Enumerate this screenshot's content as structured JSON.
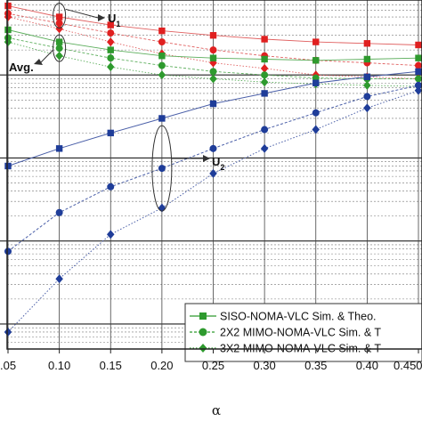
{
  "chart_data": {
    "type": "line",
    "xlabel": "α",
    "ylabel": "",
    "title": "",
    "x_ticks": [
      0.05,
      0.1,
      0.15,
      0.2,
      0.25,
      0.3,
      0.35,
      0.4,
      0.45
    ],
    "x_tick_labels": [
      ".05",
      "0.10",
      "0.15",
      "0.20",
      "0.25",
      "0.30",
      "0.35",
      "0.40",
      "0.450"
    ],
    "xlim": [
      0.05,
      0.45
    ],
    "ylim": [
      5e-05,
      0.8
    ],
    "y_scale": "log",
    "grid": true,
    "legend_position": "bottom-right",
    "legend": [
      {
        "label": "SISO-NOMA-VLC Sim. & Theo.",
        "marker": "square",
        "color": "#2e9a2e"
      },
      {
        "label": "2X2 MIMO-NOMA-VLC Sim. & T",
        "marker": "circle",
        "color": "#2e9a2e"
      },
      {
        "label": "3X2 MIMO-NOMA-VLC Sim. & T",
        "marker": "diamond",
        "color": "#2e9a2e"
      }
    ],
    "annotations": [
      {
        "text": "U",
        "sub": "1"
      },
      {
        "text": "Avg."
      },
      {
        "text": "U",
        "sub": "2"
      }
    ],
    "series": [
      {
        "group": "U1",
        "style": "siso",
        "marker": "square",
        "color": "#e02020",
        "x": [
          0.05,
          0.1,
          0.15,
          0.2,
          0.25,
          0.3,
          0.35,
          0.4,
          0.45
        ],
        "y": [
          0.68,
          0.5,
          0.4,
          0.34,
          0.3,
          0.27,
          0.25,
          0.24,
          0.23
        ]
      },
      {
        "group": "U1",
        "style": "mimo2",
        "marker": "circle",
        "color": "#e02020",
        "x": [
          0.05,
          0.1,
          0.15,
          0.2,
          0.25,
          0.3,
          0.35,
          0.4,
          0.45
        ],
        "y": [
          0.55,
          0.42,
          0.32,
          0.25,
          0.2,
          0.17,
          0.15,
          0.14,
          0.13
        ]
      },
      {
        "group": "U1",
        "style": "mimo3",
        "marker": "diamond",
        "color": "#e02020",
        "x": [
          0.05,
          0.1,
          0.15,
          0.2,
          0.25,
          0.3,
          0.35,
          0.4,
          0.45
        ],
        "y": [
          0.5,
          0.36,
          0.25,
          0.18,
          0.14,
          0.12,
          0.1,
          0.095,
          0.09
        ]
      },
      {
        "group": "Avg",
        "style": "siso",
        "marker": "square",
        "color": "#2e9a2e",
        "x": [
          0.05,
          0.1,
          0.15,
          0.2,
          0.25,
          0.3,
          0.35,
          0.4,
          0.45
        ],
        "y": [
          0.35,
          0.25,
          0.2,
          0.17,
          0.16,
          0.155,
          0.15,
          0.155,
          0.16
        ]
      },
      {
        "group": "Avg",
        "style": "mimo2",
        "marker": "circle",
        "color": "#2e9a2e",
        "x": [
          0.05,
          0.1,
          0.15,
          0.2,
          0.25,
          0.3,
          0.35,
          0.4,
          0.45
        ],
        "y": [
          0.28,
          0.21,
          0.16,
          0.13,
          0.11,
          0.1,
          0.092,
          0.09,
          0.09
        ]
      },
      {
        "group": "Avg",
        "style": "mimo3",
        "marker": "diamond",
        "color": "#2e9a2e",
        "x": [
          0.05,
          0.1,
          0.15,
          0.2,
          0.25,
          0.3,
          0.35,
          0.4,
          0.45
        ],
        "y": [
          0.25,
          0.17,
          0.125,
          0.1,
          0.09,
          0.082,
          0.078,
          0.075,
          0.073
        ]
      },
      {
        "group": "U2",
        "style": "siso",
        "marker": "square",
        "color": "#1f3d99",
        "x": [
          0.05,
          0.1,
          0.15,
          0.2,
          0.25,
          0.3,
          0.35,
          0.4,
          0.45
        ],
        "y": [
          0.008,
          0.013,
          0.02,
          0.03,
          0.045,
          0.06,
          0.08,
          0.095,
          0.11
        ]
      },
      {
        "group": "U2",
        "style": "mimo2",
        "marker": "circle",
        "color": "#1f3d99",
        "x": [
          0.05,
          0.1,
          0.15,
          0.2,
          0.25,
          0.3,
          0.35,
          0.4,
          0.45
        ],
        "y": [
          0.00075,
          0.0022,
          0.0045,
          0.0075,
          0.013,
          0.022,
          0.035,
          0.055,
          0.075
        ]
      },
      {
        "group": "U2",
        "style": "mimo3",
        "marker": "diamond",
        "color": "#1f3d99",
        "x": [
          0.05,
          0.1,
          0.15,
          0.2,
          0.25,
          0.3,
          0.35,
          0.4,
          0.45
        ],
        "y": [
          8e-05,
          0.00035,
          0.0012,
          0.0025,
          0.0065,
          0.013,
          0.022,
          0.04,
          0.065
        ]
      }
    ]
  }
}
